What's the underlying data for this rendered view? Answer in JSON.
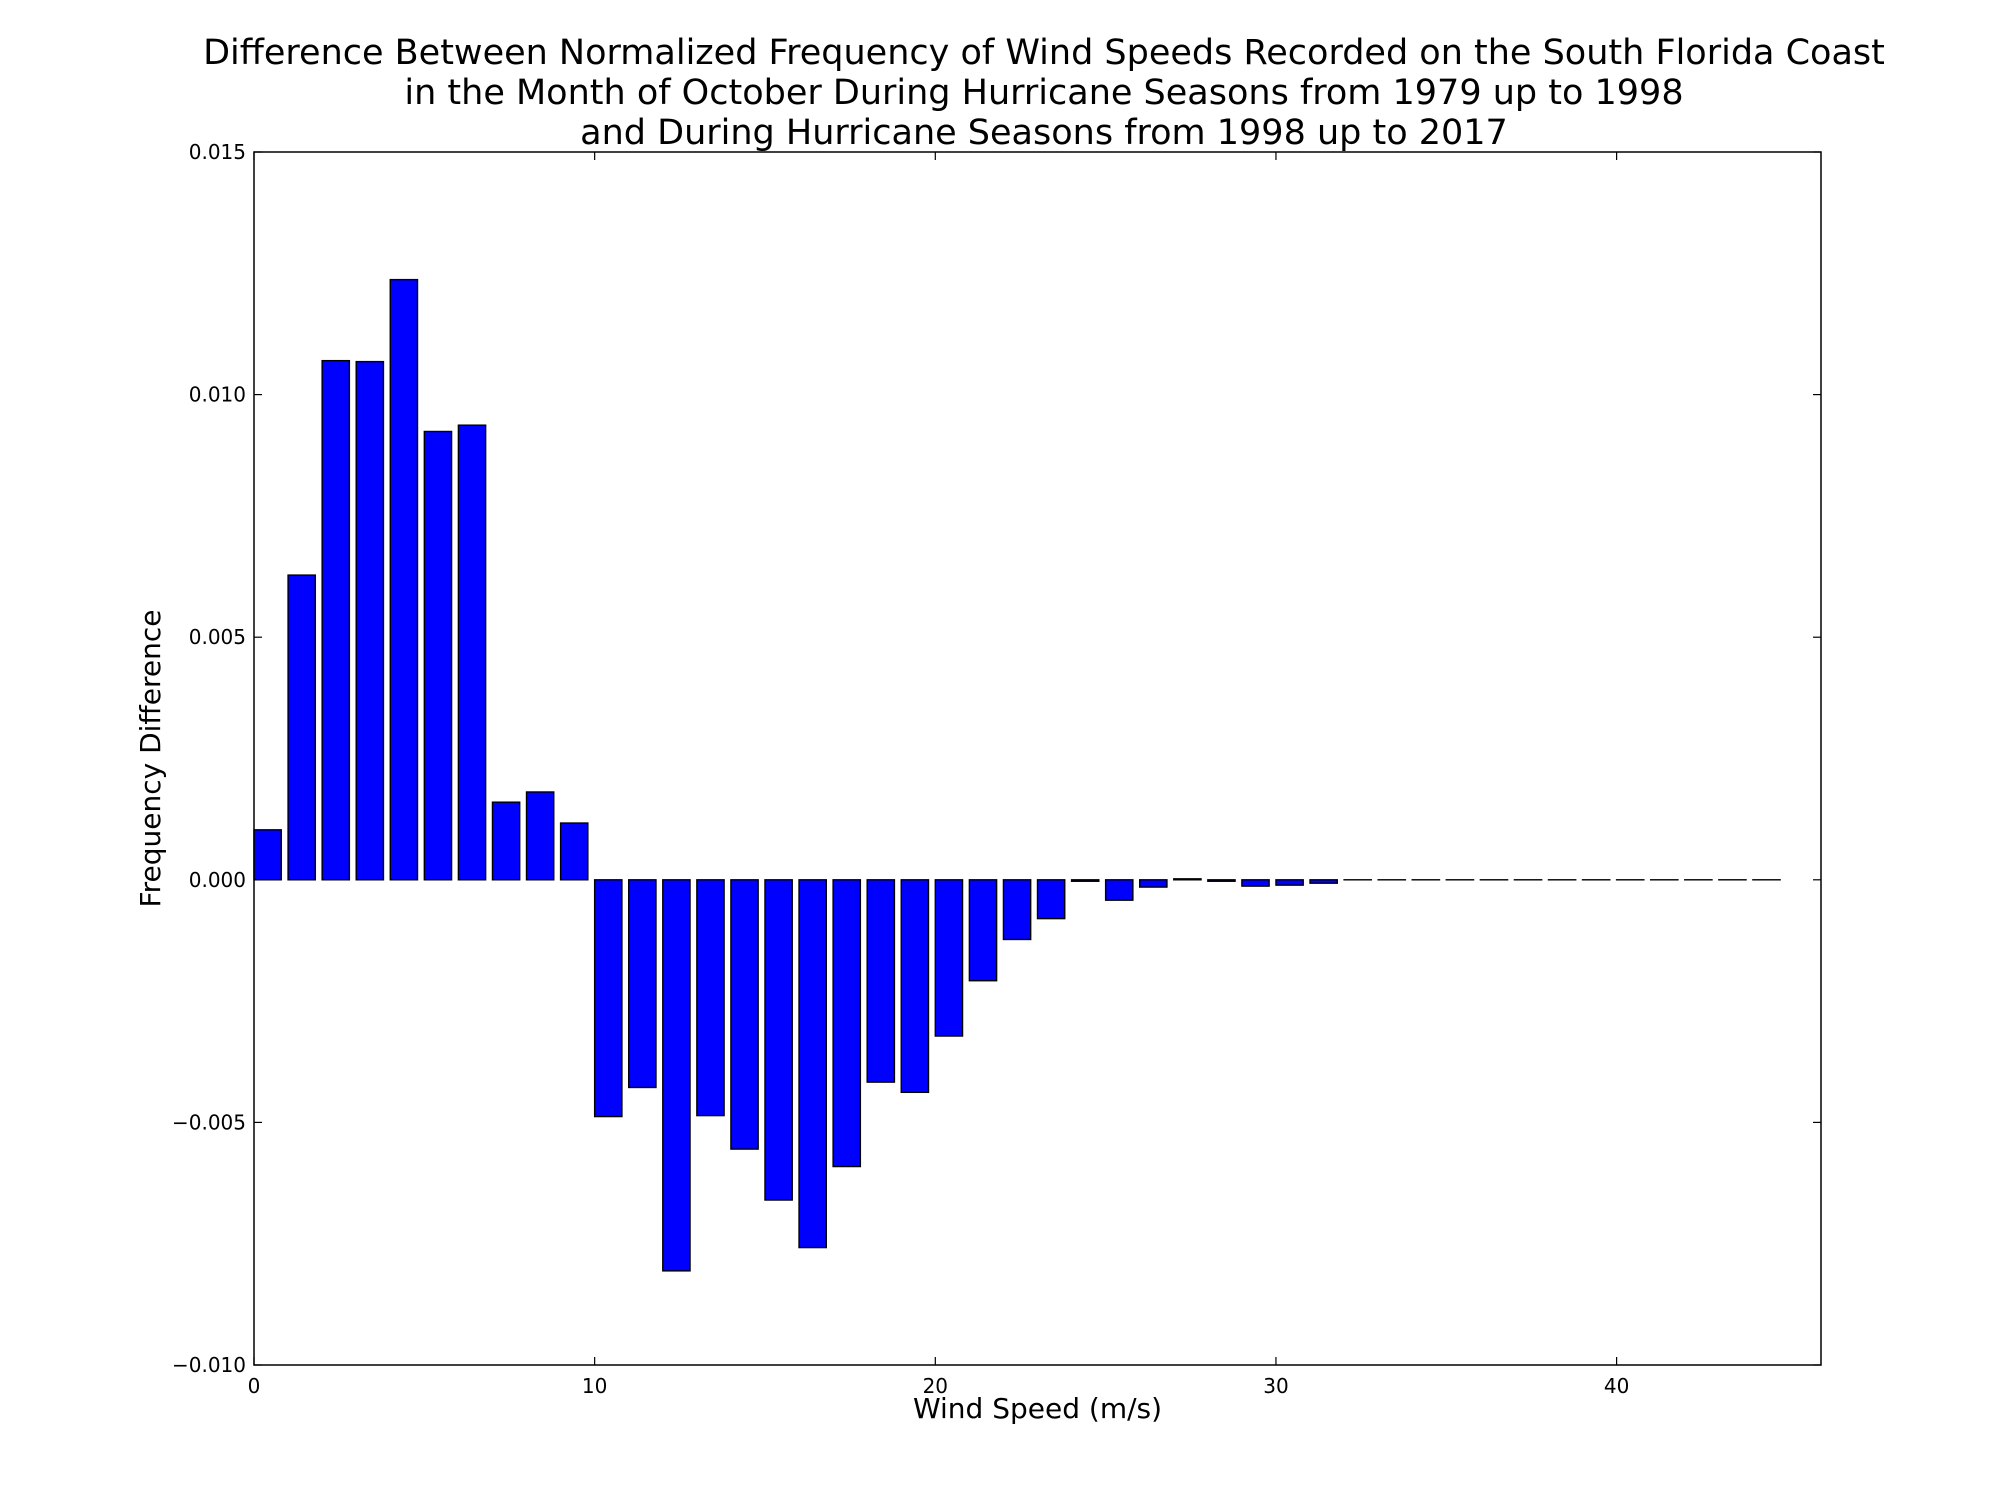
{
  "chart_data": {
    "type": "bar",
    "title_lines": [
      "Difference Between Normalized Frequency of Wind Speeds Recorded on the South Florida Coast",
      "in the Month of October During Hurricane Seasons from 1979 up to 1998",
      "and During Hurricane Seasons from 1998 up to 2017"
    ],
    "xlabel": "Wind Speed (m/s)",
    "ylabel": "Frequency Difference",
    "xlim": [
      0,
      46
    ],
    "ylim": [
      -0.01,
      0.015
    ],
    "xticks": [
      0,
      10,
      20,
      30,
      40
    ],
    "xtick_labels": [
      "0",
      "10",
      "20",
      "30",
      "40"
    ],
    "yticks": [
      0.015,
      0.01,
      0.005,
      0.0,
      -0.005,
      -0.01
    ],
    "ytick_labels": [
      "0.015",
      "0.010",
      "0.005",
      "0.000",
      "−0.005",
      "−0.010"
    ],
    "bar_width": 0.8,
    "bar_color": "#0000ff",
    "bar_edge_color": "#000000",
    "grid": false,
    "x": [
      0,
      1,
      2,
      3,
      4,
      5,
      6,
      7,
      8,
      9,
      10,
      11,
      12,
      13,
      14,
      15,
      16,
      17,
      18,
      19,
      20,
      21,
      22,
      23,
      24,
      25,
      26,
      27,
      28,
      29,
      30,
      31,
      32,
      33,
      34,
      35,
      36,
      37,
      38,
      39,
      40,
      41,
      42,
      43,
      44
    ],
    "values": [
      0.00103,
      0.00628,
      0.0107,
      0.01068,
      0.01237,
      0.00924,
      0.00937,
      0.0016,
      0.00181,
      0.00117,
      -0.00488,
      -0.00428,
      -0.00806,
      -0.00486,
      -0.00555,
      -0.0066,
      -0.00758,
      -0.00591,
      -0.00417,
      -0.00438,
      -0.00322,
      -0.00208,
      -0.00123,
      -0.0008,
      -3e-05,
      -0.00042,
      -0.00015,
      2e-05,
      -3e-05,
      -0.00013,
      -0.00011,
      -7e-05,
      0.0,
      0.0,
      0.0,
      0.0,
      0.0,
      0.0,
      0.0,
      0.0,
      0.0,
      0.0,
      0.0,
      0.0,
      0.0
    ]
  }
}
